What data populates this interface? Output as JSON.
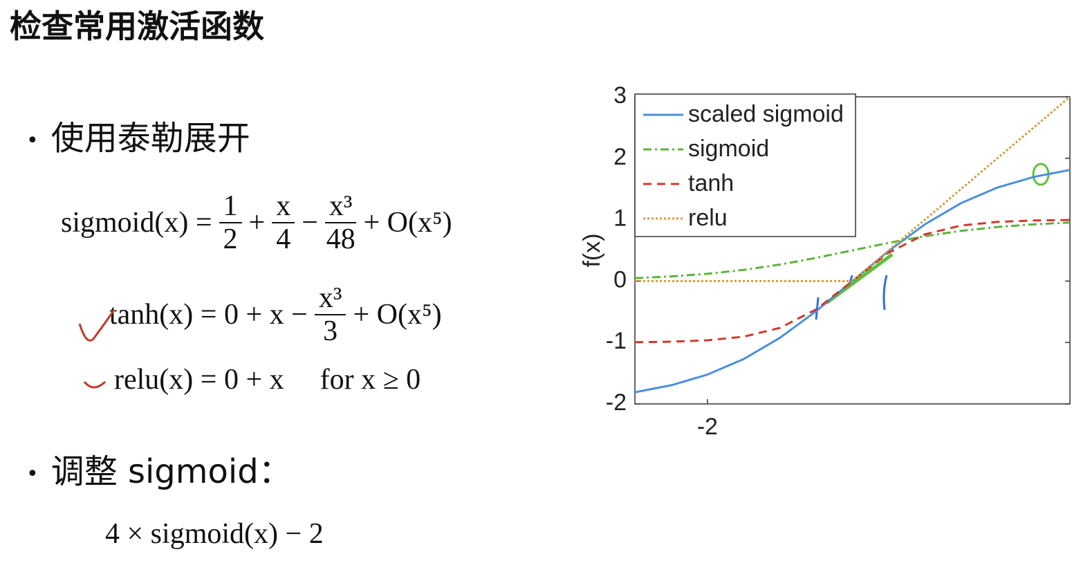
{
  "header": {
    "title": "检查常用激活函数"
  },
  "bullets": [
    "使用泰勒展开",
    "调整 sigmoid："
  ],
  "formulas": {
    "sigmoid": {
      "lhs": "sigmoid(x) =",
      "f1_num": "1",
      "f1_den": "2",
      "op1": "+",
      "f2_num": "x",
      "f2_den": "4",
      "op2": "−",
      "f3_num": "x³",
      "f3_den": "48",
      "tail": "+ O(x⁵)"
    },
    "tanh": {
      "lhs": "tanh(x) = 0 + x −",
      "f_num": "x³",
      "f_den": "3",
      "tail": "+ O(x⁵)"
    },
    "relu": {
      "lhs": "relu(x) = 0 + x",
      "cond": "for x ≥ 0"
    },
    "scaled": "4 × sigmoid(x) − 2"
  },
  "chart_data": {
    "type": "line",
    "ylabel": "f(x)",
    "x": [
      -3,
      -2.5,
      -2,
      -1.5,
      -1,
      -0.5,
      0,
      0.5,
      1,
      1.5,
      2,
      2.5,
      3
    ],
    "series": [
      {
        "name": "scaled sigmoid",
        "color": "#4a8fdc",
        "dash": "solid",
        "values": [
          -1.81,
          -1.696,
          -1.523,
          -1.27,
          -0.924,
          -0.49,
          0,
          0.49,
          0.924,
          1.27,
          1.523,
          1.696,
          1.81
        ]
      },
      {
        "name": "sigmoid",
        "color": "#5cb33a",
        "dash": "dashdot",
        "values": [
          0.047,
          0.076,
          0.119,
          0.182,
          0.269,
          0.378,
          0.5,
          0.622,
          0.731,
          0.818,
          0.881,
          0.924,
          0.953
        ]
      },
      {
        "name": "tanh",
        "color": "#d0392b",
        "dash": "dashed",
        "values": [
          -0.995,
          -0.987,
          -0.964,
          -0.905,
          -0.762,
          -0.462,
          0,
          0.462,
          0.762,
          0.905,
          0.964,
          0.987,
          0.995
        ]
      },
      {
        "name": "relu",
        "color": "#d49a3c",
        "dash": "dotted",
        "values": [
          0,
          0,
          0,
          0,
          0,
          0,
          0,
          0.5,
          1,
          1.5,
          2,
          2.5,
          3
        ]
      }
    ],
    "xlim": [
      -3,
      3
    ],
    "ylim": [
      -2,
      3
    ],
    "xticks": [
      -2
    ],
    "yticks": [
      -2,
      -1,
      0,
      1,
      2,
      3
    ],
    "legend": "upper-left"
  }
}
